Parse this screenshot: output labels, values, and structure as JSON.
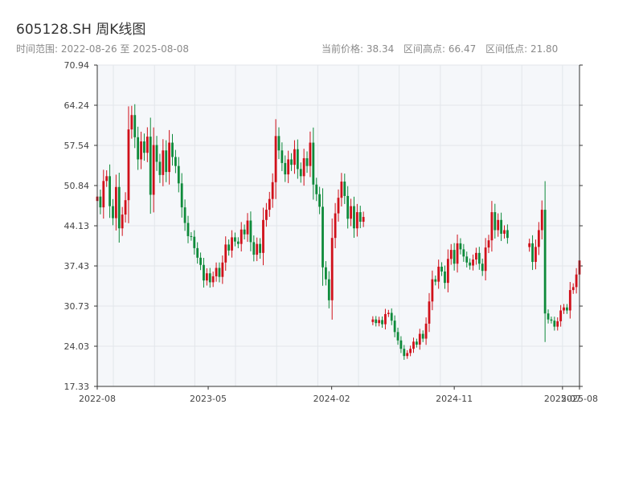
{
  "header": {
    "title": "605128.SH 周K线图",
    "subtitle": "时间范围: 2022-08-26 至 2025-08-08",
    "current_price": "当前价格: 38.34",
    "high_price": "区间高点: 66.47",
    "low_price": "区间低点: 21.80"
  },
  "colors": {
    "up": "#d0101a",
    "down": "#0e8a3a",
    "plot_bg": "#f5f7fa",
    "grid": "#e2e6ea"
  },
  "chart_data": {
    "type": "candlestick",
    "title": "605128.SH 周K线图",
    "x_range": [
      "2022-08-26",
      "2025-08-08"
    ],
    "ylim": [
      17.33,
      70.94
    ],
    "y_ticks": [
      "17.33",
      "24.03",
      "30.73",
      "37.43",
      "44.13",
      "50.84",
      "57.54",
      "64.24",
      "70.94"
    ],
    "x_ticks": [
      {
        "date": "2022-08-26",
        "label": "2022-08"
      },
      {
        "date": "2023-05-01",
        "label": "2023-05"
      },
      {
        "date": "2024-02-01",
        "label": "2024-02"
      },
      {
        "date": "2024-11-01",
        "label": "2024-11"
      },
      {
        "date": "2025-07-01",
        "label": "2025-07"
      },
      {
        "date": "2025-08-08",
        "label": "2025-08"
      }
    ],
    "grid": true,
    "segments": [
      {
        "start": "2022-08-26",
        "end": "2024-04-05",
        "closes": [
          49.0,
          47.2,
          51.6,
          52.4,
          47.4,
          45.4,
          50.6,
          43.7,
          46.0,
          48.4,
          60.2,
          62.6,
          58.9,
          55.2,
          58.2,
          56.3,
          59.0,
          49.3,
          57.6,
          54.8,
          52.6,
          56.7,
          53.1,
          58.0,
          55.6,
          54.1,
          51.2,
          47.2,
          44.6,
          42.4,
          42.3,
          40.4,
          38.8,
          37.6,
          35.0,
          36.2,
          34.7,
          35.7,
          37.1,
          35.6,
          38.0,
          41.0,
          40.0,
          42.2,
          41.5,
          41.1,
          43.5,
          42.7,
          45.0,
          41.4,
          39.3,
          41.1,
          39.6,
          45.1,
          46.8,
          48.6,
          51.4,
          59.1,
          56.7,
          54.6,
          52.7,
          55.2,
          54.3,
          56.9,
          53.6,
          52.4,
          55.4,
          54.1,
          58.0,
          51.0,
          49.4,
          47.3,
          37.2,
          35.2,
          31.7,
          42.1,
          46.2,
          48.8,
          51.5,
          49.1,
          45.3,
          47.4,
          43.7,
          46.4,
          44.8,
          45.6
        ]
      },
      {
        "start": "2024-05-03",
        "end": "2025-03-28",
        "closes": [
          28.5,
          27.9,
          28.4,
          27.7,
          29.4,
          29.6,
          28.3,
          26.4,
          25.0,
          23.6,
          22.4,
          22.9,
          23.6,
          24.8,
          24.3,
          26.1,
          25.3,
          27.8,
          31.5,
          35.2,
          34.8,
          37.3,
          36.5,
          34.6,
          38.6,
          40.1,
          37.8,
          41.2,
          40.2,
          39.0,
          38.0,
          37.5,
          38.5,
          39.6,
          37.8,
          36.6,
          40.5,
          41.7,
          46.4,
          43.4,
          45.1,
          42.8,
          43.4,
          42.1
        ]
      },
      {
        "start": "2025-04-18",
        "end": "2025-08-08",
        "closes": [
          41.2,
          38.1,
          40.6,
          43.4,
          46.8,
          29.5,
          28.5,
          28.3,
          27.3,
          28.2,
          30.0,
          30.5,
          30.0,
          33.4,
          33.9,
          36.0,
          38.34
        ]
      }
    ]
  }
}
